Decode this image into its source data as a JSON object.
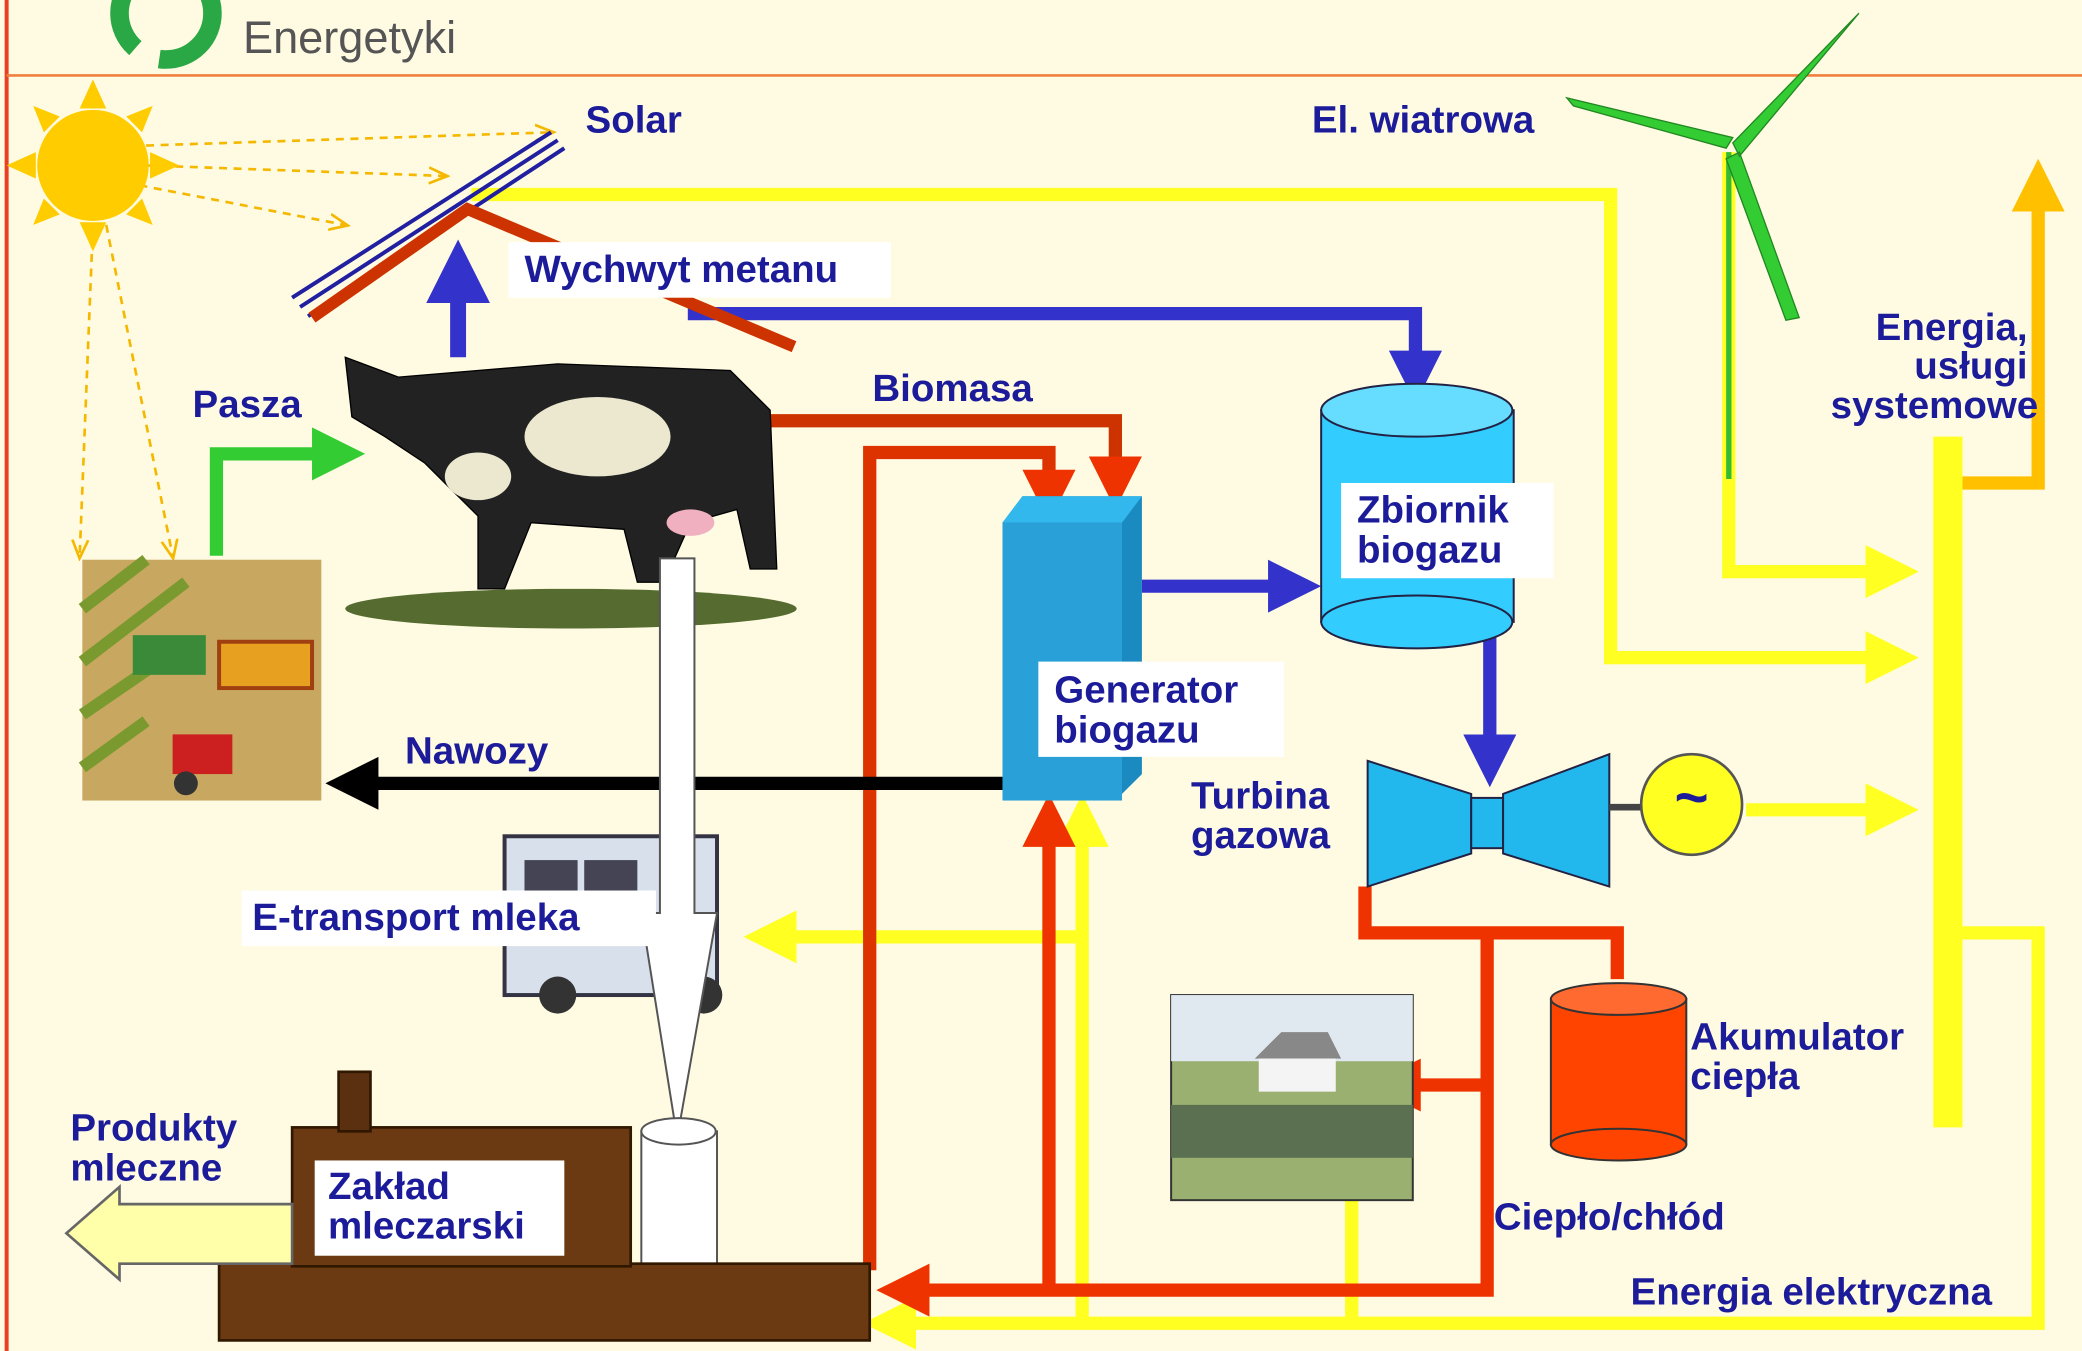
{
  "logo": {
    "text": "Energetyki"
  },
  "labels": {
    "solar": [
      "Solar"
    ],
    "wind": [
      "El. wiatrowa"
    ],
    "methane": [
      "Wychwyt metanu"
    ],
    "feed": [
      "Pasza"
    ],
    "biomass": [
      "Biomasa"
    ],
    "energy_services": [
      "Energia,",
      "usługi",
      "systemowe"
    ],
    "biogas_tank": [
      "Zbiornik",
      "biogazu"
    ],
    "biogas_generator": [
      "Generator",
      "biogazu"
    ],
    "fertilizers": [
      "Nawozy"
    ],
    "gas_turbine": [
      "Turbina",
      "gazowa"
    ],
    "milk_transport": [
      "E-transport mleka"
    ],
    "heat_accumulator": [
      "Akumulator",
      "ciepła"
    ],
    "dairy_products": [
      "Produkty",
      "mleczne"
    ],
    "dairy_plant": [
      "Zakład",
      "mleczarski"
    ],
    "heat_cold": [
      "Ciepło/chłód"
    ],
    "electricity": [
      "Energia elektryczna"
    ],
    "generator_symbol": [
      "~"
    ]
  }
}
